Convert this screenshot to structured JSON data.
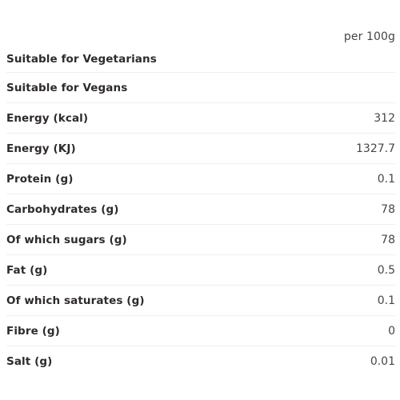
{
  "table": {
    "column_header": "per 100g",
    "rows": [
      {
        "label": "Suitable for Vegetarians",
        "value": ""
      },
      {
        "label": "Suitable for Vegans",
        "value": ""
      },
      {
        "label": "Energy (kcal)",
        "value": "312"
      },
      {
        "label": "Energy (KJ)",
        "value": "1327.7"
      },
      {
        "label": "Protein (g)",
        "value": "0.1"
      },
      {
        "label": "Carbohydrates (g)",
        "value": "78"
      },
      {
        "label": "Of which sugars (g)",
        "value": "78"
      },
      {
        "label": "Fat (g)",
        "value": "0.5"
      },
      {
        "label": "Of which saturates (g)",
        "value": "0.1"
      },
      {
        "label": "Fibre (g)",
        "value": "0"
      },
      {
        "label": "Salt (g)",
        "value": "0.01"
      }
    ]
  }
}
